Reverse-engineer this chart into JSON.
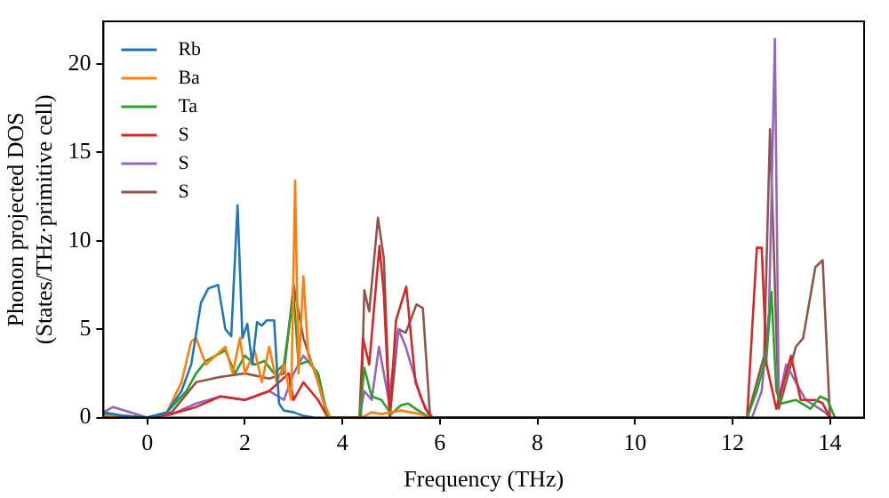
{
  "chart_data": {
    "type": "line",
    "xlabel": "Frequency (THz)",
    "ylabel": "Phonon projected DOS\n(States/THz·primitive cell)",
    "xlim": [
      -0.9,
      14.7
    ],
    "ylim": [
      0,
      22.4
    ],
    "xticks": [
      0,
      2,
      4,
      6,
      8,
      10,
      12,
      14
    ],
    "yticks": [
      0,
      5,
      10,
      15,
      20
    ],
    "grid": false,
    "legend": "top left",
    "marker": "none",
    "line_style": "solid",
    "series": [
      {
        "name": "Rb",
        "color": "#1f77b4",
        "x": [
          -0.9,
          -0.5,
          0,
          0.4,
          0.7,
          0.9,
          1.1,
          1.25,
          1.45,
          1.6,
          1.72,
          1.85,
          1.95,
          2.05,
          2.15,
          2.25,
          2.35,
          2.45,
          2.6,
          2.7,
          2.8,
          3.0,
          3.2,
          3.4
        ],
        "values": [
          0.3,
          0.1,
          0,
          0.3,
          1.5,
          3,
          6.5,
          7.3,
          7.5,
          5,
          4.6,
          12,
          4.5,
          5.3,
          3,
          5.4,
          5.2,
          5.5,
          5.5,
          0.8,
          0.4,
          0.3,
          0.1,
          0
        ]
      },
      {
        "name": "Ba",
        "color": "#ff7f0e",
        "x": [
          -0.9,
          0,
          0.4,
          0.7,
          0.9,
          1.0,
          1.2,
          1.4,
          1.6,
          1.75,
          1.9,
          2.0,
          2.2,
          2.35,
          2.5,
          2.65,
          2.8,
          2.95,
          3.03,
          3.1,
          3.2,
          3.3,
          3.45,
          3.6,
          3.75,
          4.4,
          4.6,
          4.8,
          5.2,
          5.4,
          5.6,
          5.8
        ],
        "values": [
          0.1,
          0,
          0.3,
          2,
          4.3,
          4.5,
          3,
          3.5,
          4,
          2.5,
          4.5,
          2.5,
          3.8,
          2,
          4,
          2,
          3,
          1,
          13.4,
          2.5,
          8,
          3.5,
          2.5,
          1,
          0,
          0,
          0.3,
          0.2,
          0.4,
          0.3,
          0.2,
          0
        ]
      },
      {
        "name": "Ta",
        "color": "#2ca02c",
        "x": [
          -0.9,
          0,
          0.4,
          0.8,
          1.0,
          1.2,
          1.4,
          1.6,
          1.8,
          2.0,
          2.2,
          2.4,
          2.6,
          2.8,
          3.0,
          3.1,
          3.3,
          3.5,
          3.7,
          4.35,
          4.45,
          4.6,
          4.8,
          5.0,
          5.2,
          5.35,
          5.5,
          5.8,
          12.3,
          12.5,
          12.7,
          12.8,
          12.9,
          13.0,
          13.3,
          13.6,
          13.8,
          13.95,
          14.1
        ],
        "values": [
          0.2,
          0,
          0.3,
          1.5,
          2.5,
          3.2,
          3.5,
          3.8,
          2.5,
          3.5,
          3,
          3.2,
          2.5,
          3,
          7,
          3,
          3.2,
          2.5,
          0,
          0,
          2.8,
          1.2,
          1,
          0.2,
          0.7,
          0.8,
          0.5,
          0,
          0,
          1.5,
          3.5,
          7.1,
          1.5,
          0.8,
          1,
          0.5,
          1.2,
          1,
          0
        ]
      },
      {
        "name": "S",
        "color": "#d62728",
        "x": [
          -0.9,
          0,
          0.5,
          1.0,
          1.5,
          2.0,
          2.5,
          2.9,
          3.0,
          3.2,
          3.5,
          3.7,
          4.35,
          4.42,
          4.55,
          4.76,
          4.85,
          4.97,
          5.1,
          5.31,
          5.5,
          5.7,
          5.85,
          12.3,
          12.5,
          12.6,
          12.7,
          12.9,
          13.2,
          13.4,
          13.7,
          13.85,
          14.0
        ],
        "values": [
          0.1,
          0,
          0.2,
          0.6,
          1.2,
          1,
          1.5,
          2.5,
          1,
          2,
          1,
          0,
          0,
          4.5,
          3,
          9.7,
          7,
          0,
          5.5,
          7.4,
          2,
          0.5,
          0,
          0,
          9.6,
          9.6,
          3,
          0.5,
          3.5,
          1,
          1,
          0.8,
          0
        ]
      },
      {
        "name": "S",
        "color": "#9467bd",
        "x": [
          -0.9,
          -0.7,
          0,
          0.5,
          1.0,
          1.5,
          2.0,
          2.5,
          2.8,
          3.0,
          3.2,
          3.5,
          3.7,
          4.35,
          4.45,
          4.6,
          4.75,
          4.95,
          5.15,
          5.3,
          5.6,
          5.8,
          12.4,
          12.6,
          12.75,
          12.87,
          12.95,
          13.1,
          13.5,
          13.9,
          14.0
        ],
        "values": [
          0.3,
          0.6,
          0,
          0.2,
          0.8,
          1.2,
          1,
          1.5,
          1,
          2.5,
          3.5,
          2.5,
          0,
          0,
          1.5,
          1,
          4,
          1,
          5,
          4,
          1.2,
          0,
          0,
          1.5,
          6,
          21.4,
          1,
          3,
          1,
          0.3,
          0
        ]
      },
      {
        "name": "S",
        "color": "#8c564b",
        "x": [
          -0.9,
          0,
          0.5,
          1.0,
          1.5,
          2.0,
          2.5,
          2.8,
          3.0,
          3.2,
          3.5,
          3.7,
          4.38,
          4.45,
          4.55,
          4.73,
          4.85,
          4.97,
          5.15,
          5.3,
          5.52,
          5.65,
          5.8,
          12.3,
          12.5,
          12.65,
          12.77,
          12.95,
          13.1,
          13.3,
          13.45,
          13.7,
          13.85,
          14.0
        ],
        "values": [
          0.1,
          0,
          0.3,
          2,
          2.3,
          2.5,
          2.2,
          2.5,
          7.5,
          4.5,
          2,
          0,
          0,
          7.2,
          6,
          11.3,
          9,
          0,
          5,
          4.8,
          6.4,
          6.2,
          0,
          0,
          2,
          3.5,
          16.3,
          0.5,
          2,
          4,
          4.5,
          8.5,
          8.9,
          0
        ]
      }
    ]
  }
}
